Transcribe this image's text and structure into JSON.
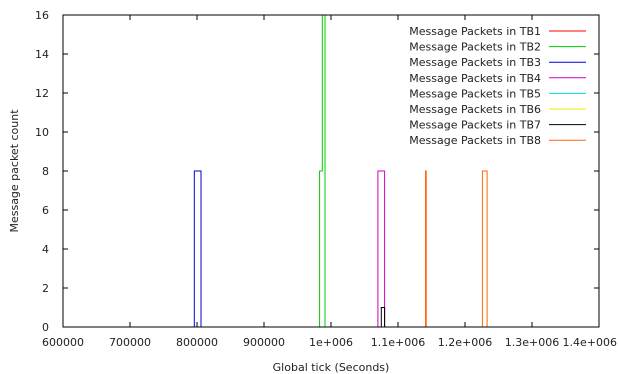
{
  "chart_data": {
    "type": "line",
    "title": "",
    "xlabel": "Global tick (Seconds)",
    "ylabel": "Message packet count",
    "xlim": [
      600000,
      1400000
    ],
    "ylim": [
      0,
      16
    ],
    "x_ticks": [
      600000,
      700000,
      800000,
      900000,
      1000000,
      1100000,
      1200000,
      1300000,
      1400000
    ],
    "x_tick_labels": [
      "600000",
      "700000",
      "800000",
      "900000",
      "1e+006",
      "1.1e+006",
      "1.2e+006",
      "1.3e+006",
      "1.4e+006"
    ],
    "y_ticks": [
      0,
      2,
      4,
      6,
      8,
      10,
      12,
      14,
      16
    ],
    "y_tick_labels": [
      "0",
      "2",
      "4",
      "6",
      "8",
      "10",
      "12",
      "14",
      "16"
    ],
    "grid": false,
    "legend_position": "top-right",
    "series": [
      {
        "name": "Message Packets in TB1",
        "color": "#ff0000",
        "points": [
          [
            660000,
            0
          ],
          [
            1141000,
            0
          ],
          [
            1141000,
            8
          ],
          [
            1142000,
            8
          ],
          [
            1142000,
            0
          ],
          [
            1317000,
            0
          ]
        ]
      },
      {
        "name": "Message Packets in TB2",
        "color": "#00cc00",
        "points": [
          [
            660000,
            0
          ],
          [
            983000,
            0
          ],
          [
            983000,
            8
          ],
          [
            987000,
            8
          ],
          [
            987000,
            16
          ],
          [
            991000,
            16
          ],
          [
            991000,
            0
          ],
          [
            1317000,
            0
          ]
        ]
      },
      {
        "name": "Message Packets in TB3",
        "color": "#0000cc",
        "points": [
          [
            660000,
            0
          ],
          [
            796000,
            0
          ],
          [
            796000,
            8
          ],
          [
            806000,
            8
          ],
          [
            806000,
            0
          ],
          [
            1317000,
            0
          ]
        ]
      },
      {
        "name": "Message Packets in TB4",
        "color": "#cc00cc",
        "points": [
          [
            660000,
            0
          ],
          [
            1070000,
            0
          ],
          [
            1070000,
            8
          ],
          [
            1080000,
            8
          ],
          [
            1080000,
            0
          ],
          [
            1317000,
            0
          ]
        ]
      },
      {
        "name": "Message Packets in TB5",
        "color": "#00dddd",
        "points": [
          [
            660000,
            0
          ],
          [
            1317000,
            0
          ]
        ]
      },
      {
        "name": "Message Packets in TB6",
        "color": "#eeee00",
        "points": [
          [
            660000,
            0
          ],
          [
            1317000,
            0
          ]
        ]
      },
      {
        "name": "Message Packets in TB7",
        "color": "#000000",
        "points": [
          [
            660000,
            0
          ],
          [
            1075000,
            0
          ],
          [
            1075000,
            1
          ],
          [
            1080000,
            1
          ],
          [
            1080000,
            0
          ],
          [
            1317000,
            0
          ]
        ]
      },
      {
        "name": "Message Packets in TB8",
        "color": "#ff6600",
        "points": [
          [
            660000,
            0
          ],
          [
            1141000,
            0
          ],
          [
            1141000,
            8
          ],
          [
            1142000,
            8
          ],
          [
            1142000,
            0
          ],
          [
            1226000,
            0
          ],
          [
            1226000,
            8
          ],
          [
            1233000,
            8
          ],
          [
            1233000,
            0
          ],
          [
            1317000,
            0
          ]
        ]
      }
    ]
  }
}
